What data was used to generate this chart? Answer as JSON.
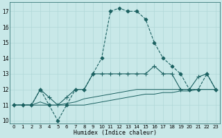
{
  "title": "",
  "xlabel": "Humidex (Indice chaleur)",
  "xlim": [
    -0.5,
    23.5
  ],
  "ylim": [
    9.8,
    17.6
  ],
  "yticks": [
    10,
    11,
    12,
    13,
    14,
    15,
    16,
    17
  ],
  "xticks": [
    0,
    1,
    2,
    3,
    4,
    5,
    6,
    7,
    8,
    9,
    10,
    11,
    12,
    13,
    14,
    15,
    16,
    17,
    18,
    19,
    20,
    21,
    22,
    23
  ],
  "background_color": "#c8e8e8",
  "grid_color": "#b0d8d8",
  "line_color": "#1a6060",
  "lines": [
    {
      "x": [
        0,
        1,
        2,
        3,
        4,
        5,
        6,
        7,
        8,
        9,
        10,
        11,
        12,
        13,
        14,
        15,
        16,
        17,
        18,
        19,
        20,
        21,
        22,
        23
      ],
      "y": [
        11,
        11,
        11,
        12,
        11,
        10,
        11,
        12,
        12,
        13,
        14,
        17,
        17.2,
        17,
        17,
        16.5,
        15,
        14,
        13.5,
        13,
        12,
        12,
        13,
        12
      ],
      "style": "--",
      "marker": "D",
      "markersize": 2.5,
      "linewidth": 0.8
    },
    {
      "x": [
        0,
        1,
        2,
        3,
        4,
        5,
        6,
        7,
        8,
        9,
        10,
        11,
        12,
        13,
        14,
        15,
        16,
        17,
        18,
        19,
        20,
        21,
        22,
        23
      ],
      "y": [
        11,
        11,
        11,
        11.2,
        11,
        11,
        11.1,
        11.2,
        11.4,
        11.5,
        11.6,
        11.7,
        11.8,
        11.9,
        12,
        12,
        12,
        12,
        12,
        12,
        12,
        12,
        12,
        12
      ],
      "style": "-",
      "marker": null,
      "markersize": 0,
      "linewidth": 0.7
    },
    {
      "x": [
        0,
        1,
        2,
        3,
        4,
        5,
        6,
        7,
        8,
        9,
        10,
        11,
        12,
        13,
        14,
        15,
        16,
        17,
        18,
        19,
        20,
        21,
        22,
        23
      ],
      "y": [
        11,
        11,
        11,
        11,
        11,
        11,
        11,
        11,
        11,
        11.1,
        11.2,
        11.3,
        11.4,
        11.5,
        11.6,
        11.7,
        11.7,
        11.8,
        11.8,
        11.9,
        11.9,
        12,
        12,
        12
      ],
      "style": "-",
      "marker": null,
      "markersize": 0,
      "linewidth": 0.7
    },
    {
      "x": [
        0,
        1,
        2,
        3,
        4,
        5,
        6,
        7,
        8,
        9,
        10,
        11,
        12,
        13,
        14,
        15,
        16,
        17,
        18,
        19,
        20,
        21,
        22,
        23
      ],
      "y": [
        11,
        11,
        11,
        12,
        11.5,
        11,
        11.5,
        12,
        12,
        13,
        13,
        13,
        13,
        13,
        13,
        13,
        13.5,
        13,
        13,
        12,
        12,
        12.8,
        13,
        12
      ],
      "style": "-",
      "marker": "+",
      "markersize": 4,
      "linewidth": 0.8
    }
  ]
}
